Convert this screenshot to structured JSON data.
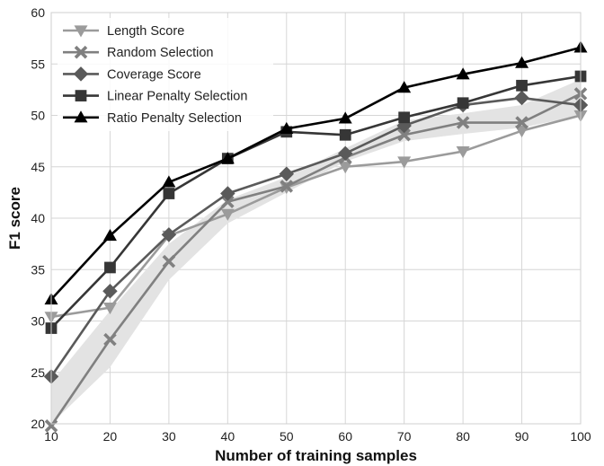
{
  "chart_data": {
    "type": "line",
    "xlabel": "Number of training samples",
    "ylabel": "F1 score",
    "xlim": [
      10,
      100
    ],
    "ylim": [
      20,
      60
    ],
    "xticks": [
      10,
      20,
      30,
      40,
      50,
      60,
      70,
      80,
      90,
      100
    ],
    "yticks": [
      20,
      25,
      30,
      35,
      40,
      45,
      50,
      55,
      60
    ],
    "grid": true,
    "legend_position": "top-left",
    "x": [
      10,
      20,
      30,
      40,
      50,
      60,
      70,
      80,
      90,
      100
    ],
    "band": {
      "lower": [
        20.0,
        25.5,
        34.0,
        39.5,
        42.5,
        45.5,
        47.5,
        48.2,
        48.8,
        50.0
      ],
      "upper": [
        24.0,
        31.0,
        37.5,
        41.8,
        44.0,
        46.8,
        49.5,
        50.2,
        51.0,
        53.5
      ],
      "color": "#e3e3e3"
    },
    "series": [
      {
        "name": "Length Score",
        "marker": "triangle-down",
        "color": "#9b9b9b",
        "values": [
          30.4,
          31.3,
          38.3,
          40.4,
          43.0,
          45.0,
          45.5,
          46.5,
          48.5,
          50.0
        ]
      },
      {
        "name": "Random Selection",
        "marker": "x",
        "color": "#808080",
        "values": [
          19.8,
          28.2,
          35.8,
          41.6,
          43.1,
          45.9,
          48.1,
          49.3,
          49.3,
          52.1
        ]
      },
      {
        "name": "Coverage Score",
        "marker": "diamond",
        "color": "#5a5a5a",
        "values": [
          24.6,
          32.9,
          38.4,
          42.4,
          44.3,
          46.3,
          49.0,
          51.0,
          51.7,
          51.0
        ]
      },
      {
        "name": "Linear Penalty Selection",
        "marker": "square",
        "color": "#363636",
        "values": [
          29.3,
          35.2,
          42.4,
          45.8,
          48.4,
          48.1,
          49.8,
          51.2,
          52.9,
          53.8
        ]
      },
      {
        "name": "Ratio Penalty Selection",
        "marker": "triangle-up",
        "color": "#000000",
        "values": [
          32.1,
          38.3,
          43.5,
          45.8,
          48.7,
          49.7,
          52.7,
          54.0,
          55.1,
          56.6
        ]
      }
    ]
  }
}
